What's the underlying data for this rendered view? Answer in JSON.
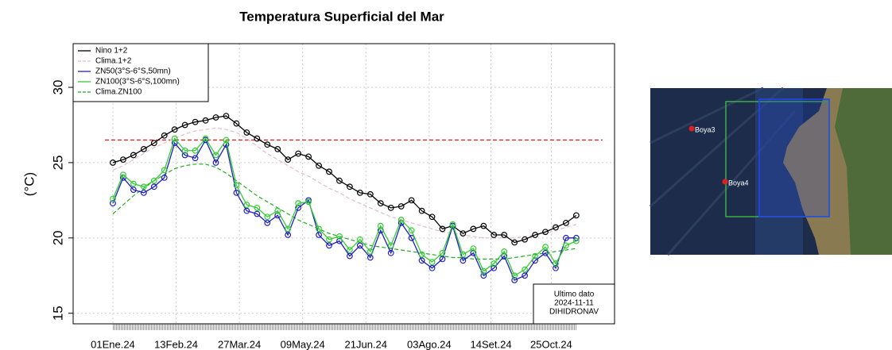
{
  "chart_data": {
    "type": "line",
    "title": "Temperatura Superficial del Mar",
    "ylabel": "(°C)",
    "x": [
      0,
      7,
      14,
      21,
      28,
      35,
      42,
      49,
      56,
      63,
      70,
      77,
      84,
      91,
      98,
      105,
      112,
      119,
      126,
      133,
      140,
      147,
      154,
      161,
      168,
      175,
      182,
      189,
      196,
      203,
      210,
      217,
      224,
      231,
      238,
      245,
      252,
      259,
      266,
      273,
      280,
      287,
      294,
      301,
      308,
      315
    ],
    "xlim": [
      -27,
      341
    ],
    "xticks": [
      {
        "value": 0,
        "label": "01Ene.24"
      },
      {
        "value": 43,
        "label": "13Feb.24"
      },
      {
        "value": 86,
        "label": "27Mar.24"
      },
      {
        "value": 129,
        "label": "09May.24"
      },
      {
        "value": 172,
        "label": "21Jun.24"
      },
      {
        "value": 215,
        "label": "03Ago.24"
      },
      {
        "value": 257,
        "label": "14Set.24"
      },
      {
        "value": 298,
        "label": "25Oct.24"
      }
    ],
    "ylim": [
      14.3,
      32.9
    ],
    "yticks": [
      15,
      20,
      25,
      30
    ],
    "grid": true,
    "legend": "top-left",
    "reference_line": {
      "value": 26.5,
      "color": "#d62728"
    },
    "series": [
      {
        "name": "Nino 1+2",
        "color": "#000000",
        "style": "markers",
        "values": [
          25.0,
          25.2,
          25.5,
          25.9,
          26.3,
          26.8,
          27.2,
          27.5,
          27.7,
          27.8,
          28.0,
          28.1,
          27.6,
          27.0,
          26.6,
          26.2,
          25.9,
          25.2,
          25.6,
          25.4,
          24.8,
          24.4,
          23.8,
          23.4,
          23.0,
          22.9,
          22.3,
          22.0,
          22.1,
          22.5,
          21.8,
          21.4,
          20.6,
          20.8,
          20.3,
          20.6,
          20.8,
          20.2,
          20.2,
          19.7,
          19.9,
          20.2,
          20.4,
          20.7,
          21.0,
          21.5
        ]
      },
      {
        "name": "Clima.1+2",
        "color": "#e6bcc8",
        "style": "dashed",
        "values": [
          24.5,
          24.8,
          25.2,
          25.6,
          26.0,
          26.3,
          26.6,
          26.9,
          27.1,
          27.2,
          27.3,
          27.2,
          27.0,
          26.6,
          26.1,
          25.6,
          25.2,
          24.8,
          24.4,
          24.1,
          23.7,
          23.3,
          23.0,
          22.6,
          22.3,
          22.0,
          21.7,
          21.4,
          21.2,
          21.0,
          20.8,
          20.6,
          20.4,
          20.3,
          20.2,
          20.1,
          20.0,
          20.0,
          20.0,
          20.0,
          20.1,
          20.2,
          20.3,
          20.5,
          20.7,
          20.9
        ]
      },
      {
        "name": "ZN50(3°S-6°S,50mn)",
        "color": "#1f1fbf",
        "style": "markers",
        "values": [
          22.3,
          24.0,
          23.2,
          23.0,
          23.4,
          24.0,
          26.3,
          25.5,
          25.3,
          26.5,
          25.0,
          26.2,
          23.0,
          21.8,
          21.6,
          21.0,
          21.5,
          20.2,
          22.0,
          22.5,
          20.2,
          19.5,
          19.8,
          18.8,
          19.5,
          18.7,
          20.5,
          19.0,
          21.0,
          20.0,
          18.5,
          18.0,
          18.6,
          20.8,
          18.5,
          19.0,
          17.5,
          18.0,
          18.8,
          17.2,
          17.5,
          18.5,
          19.0,
          18.0,
          20.0,
          20.0
        ]
      },
      {
        "name": "ZN100(3°S-6°S,100mn)",
        "color": "#33cc33",
        "style": "markers",
        "values": [
          22.6,
          24.2,
          23.6,
          23.4,
          23.8,
          24.5,
          26.6,
          25.8,
          25.8,
          26.6,
          25.5,
          26.5,
          23.5,
          22.2,
          22.0,
          21.4,
          21.8,
          20.6,
          22.3,
          22.4,
          20.6,
          19.9,
          20.1,
          19.2,
          19.9,
          19.1,
          20.8,
          19.5,
          21.2,
          20.5,
          18.9,
          18.4,
          19.0,
          20.9,
          18.9,
          19.3,
          17.8,
          18.3,
          19.1,
          17.5,
          17.9,
          18.8,
          19.4,
          18.3,
          19.5,
          19.8
        ]
      },
      {
        "name": "Clima.ZN100",
        "color": "#22aa22",
        "style": "dashed",
        "values": [
          21.6,
          22.2,
          22.8,
          23.3,
          23.8,
          24.2,
          24.6,
          24.8,
          24.9,
          24.9,
          24.7,
          24.3,
          23.8,
          23.3,
          22.8,
          22.4,
          22.0,
          21.6,
          21.2,
          20.9,
          20.6,
          20.3,
          20.1,
          19.9,
          19.7,
          19.5,
          19.4,
          19.3,
          19.2,
          19.1,
          19.0,
          18.9,
          18.8,
          18.7,
          18.7,
          18.6,
          18.6,
          18.6,
          18.6,
          18.7,
          18.8,
          18.9,
          19.0,
          19.1,
          19.2,
          19.3
        ]
      }
    ],
    "annotation": [
      "Ultimo dato",
      "2024-11-11",
      "DIHIDRONAV"
    ]
  },
  "map": {
    "markers": [
      "Boya3",
      "Boya4"
    ]
  }
}
